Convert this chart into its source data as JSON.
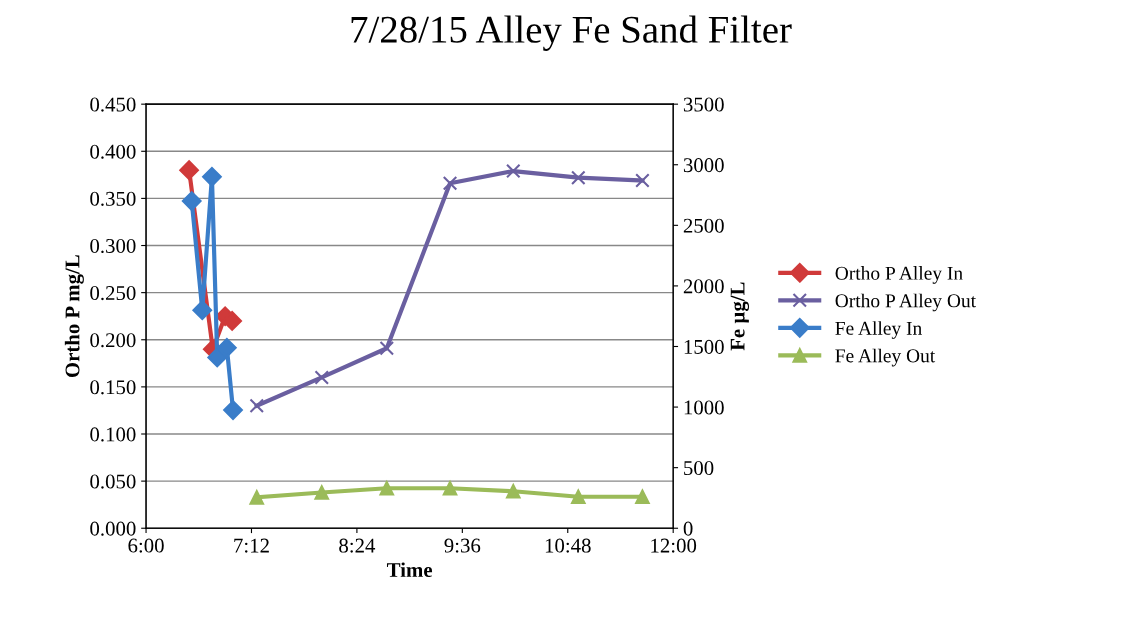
{
  "chart_data": {
    "type": "line",
    "title": "7/28/15 Alley Fe Sand Filter",
    "xlabel": "Time",
    "ylabel": "Ortho P mg/L",
    "y2label": "Fe µg/L",
    "series": [
      {
        "name": "Ortho P Alley In",
        "color": "#d03a3a",
        "marker": "diamond",
        "x": [
          6.49,
          6.76,
          6.9,
          6.98
        ],
        "values": [
          0.38,
          0.19,
          0.225,
          0.22
        ]
      },
      {
        "name": "Ortho P Alley Out",
        "color": "#6a5fa0",
        "marker": "cross",
        "x": [
          7.26,
          8.0,
          8.74,
          9.46,
          10.18,
          10.92,
          11.65
        ],
        "values": [
          0.13,
          0.16,
          0.191,
          0.366,
          0.379,
          0.372,
          0.369
        ]
      },
      {
        "name": "Fe Alley In",
        "color": "#3a7dc9",
        "marker": "diamond",
        "axis": "y2",
        "x": [
          6.52,
          6.64,
          6.75,
          6.81,
          6.92,
          6.99
        ],
        "values": [
          2700,
          1800,
          2900,
          1410,
          1490,
          975
        ]
      },
      {
        "name": "Fe Alley Out",
        "color": "#9bbb59",
        "marker": "triangle",
        "axis": "y2",
        "x": [
          7.26,
          8.0,
          8.74,
          9.46,
          10.18,
          10.92,
          11.65
        ],
        "values": [
          255,
          295,
          330,
          330,
          305,
          260,
          260
        ]
      }
    ],
    "xlim": [
      6,
      12
    ],
    "xticks": [
      {
        "value": 6,
        "label": "6:00"
      },
      {
        "value": 7.2,
        "label": "7:12"
      },
      {
        "value": 8.4,
        "label": "8:24"
      },
      {
        "value": 9.6,
        "label": "9:36"
      },
      {
        "value": 10.8,
        "label": "10:48"
      },
      {
        "value": 12,
        "label": "12:00"
      }
    ],
    "ylim": [
      0,
      0.45
    ],
    "yticks": [
      {
        "value": 0,
        "label": "0.000"
      },
      {
        "value": 0.05,
        "label": "0.050"
      },
      {
        "value": 0.1,
        "label": "0.100"
      },
      {
        "value": 0.15,
        "label": "0.150"
      },
      {
        "value": 0.2,
        "label": "0.200"
      },
      {
        "value": 0.25,
        "label": "0.250"
      },
      {
        "value": 0.3,
        "label": "0.300"
      },
      {
        "value": 0.35,
        "label": "0.350"
      },
      {
        "value": 0.4,
        "label": "0.400"
      },
      {
        "value": 0.45,
        "label": "0.450"
      }
    ],
    "y2lim": [
      0,
      3500
    ],
    "y2ticks": [
      0,
      500,
      1000,
      1500,
      2000,
      2500,
      3000,
      3500
    ],
    "grid": "y",
    "legend": "right"
  }
}
